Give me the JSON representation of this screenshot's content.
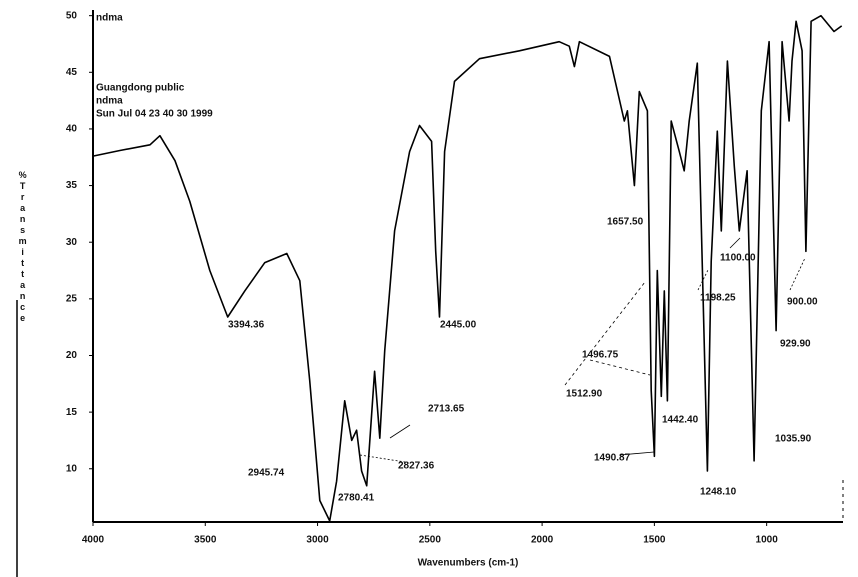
{
  "chart_data": {
    "type": "line",
    "x_label": "Wavenumbers (cm-1)",
    "y_label": "%Transmittance",
    "annotations": [
      "ndma",
      "Guangdong public",
      "ndma",
      "Sun Jul 04 23 40 30 1999",
      "3394.36",
      "2945.74",
      "2780.41",
      "2827.36",
      "2713.65",
      "2445.00",
      "1657.50",
      "1496.75",
      "1512.90",
      "1442.40",
      "1490.87",
      "1100.00",
      "1198.25",
      "1248.10",
      "1035.90",
      "929.90",
      "900.00"
    ],
    "x": [
      4000,
      3880,
      3746,
      3702,
      3635,
      3569,
      3480,
      3400,
      3324,
      3235,
      3137,
      3079,
      3035,
      2990,
      2946,
      2915,
      2879,
      2848,
      2826,
      2804,
      2781,
      2746,
      2723,
      2701,
      2657,
      2590,
      2546,
      2492,
      2474,
      2457,
      2434,
      2390,
      2279,
      2101,
      1924,
      1879,
      1856,
      1834,
      1700,
      1634,
      1620,
      1603,
      1589,
      1567,
      1531,
      1514,
      1500,
      1487,
      1469,
      1456,
      1442,
      1425,
      1389,
      1367,
      1345,
      1309,
      1287,
      1264,
      1247,
      1220,
      1202,
      1175,
      1144,
      1122,
      1087,
      1056,
      1024,
      989,
      958,
      931,
      900,
      887,
      869,
      842,
      825,
      802,
      758,
      700,
      666
    ],
    "values": [
      37.6,
      38.1,
      38.6,
      39.4,
      37.2,
      33.6,
      27.5,
      23.4,
      25.7,
      28.2,
      29.0,
      26.6,
      17.8,
      7.2,
      5.4,
      8.9,
      16.0,
      12.5,
      13.4,
      9.8,
      8.5,
      18.6,
      12.7,
      20.4,
      31.0,
      38.0,
      40.3,
      38.9,
      29.2,
      23.4,
      38.0,
      44.2,
      46.2,
      46.9,
      47.7,
      47.3,
      45.5,
      47.7,
      46.4,
      40.7,
      41.6,
      38.0,
      35.0,
      43.3,
      41.6,
      16.9,
      11.1,
      27.5,
      16.4,
      25.7,
      16.0,
      40.7,
      38.0,
      36.3,
      40.7,
      45.8,
      28.3,
      9.8,
      28.3,
      39.8,
      31.0,
      46.0,
      36.7,
      31.0,
      36.3,
      10.7,
      41.6,
      47.7,
      22.2,
      47.7,
      40.7,
      46.0,
      49.5,
      46.9,
      29.2,
      49.5,
      50.0,
      48.6,
      49.1
    ],
    "color": "#000000",
    "xlim": [
      4000,
      660
    ],
    "ylim": [
      5.3,
      50.5
    ],
    "xticks": [
      4000,
      3500,
      3000,
      2500,
      2000,
      1500,
      1000
    ],
    "yticks": [
      10,
      15,
      20,
      25,
      30,
      35,
      40,
      45,
      50
    ]
  }
}
